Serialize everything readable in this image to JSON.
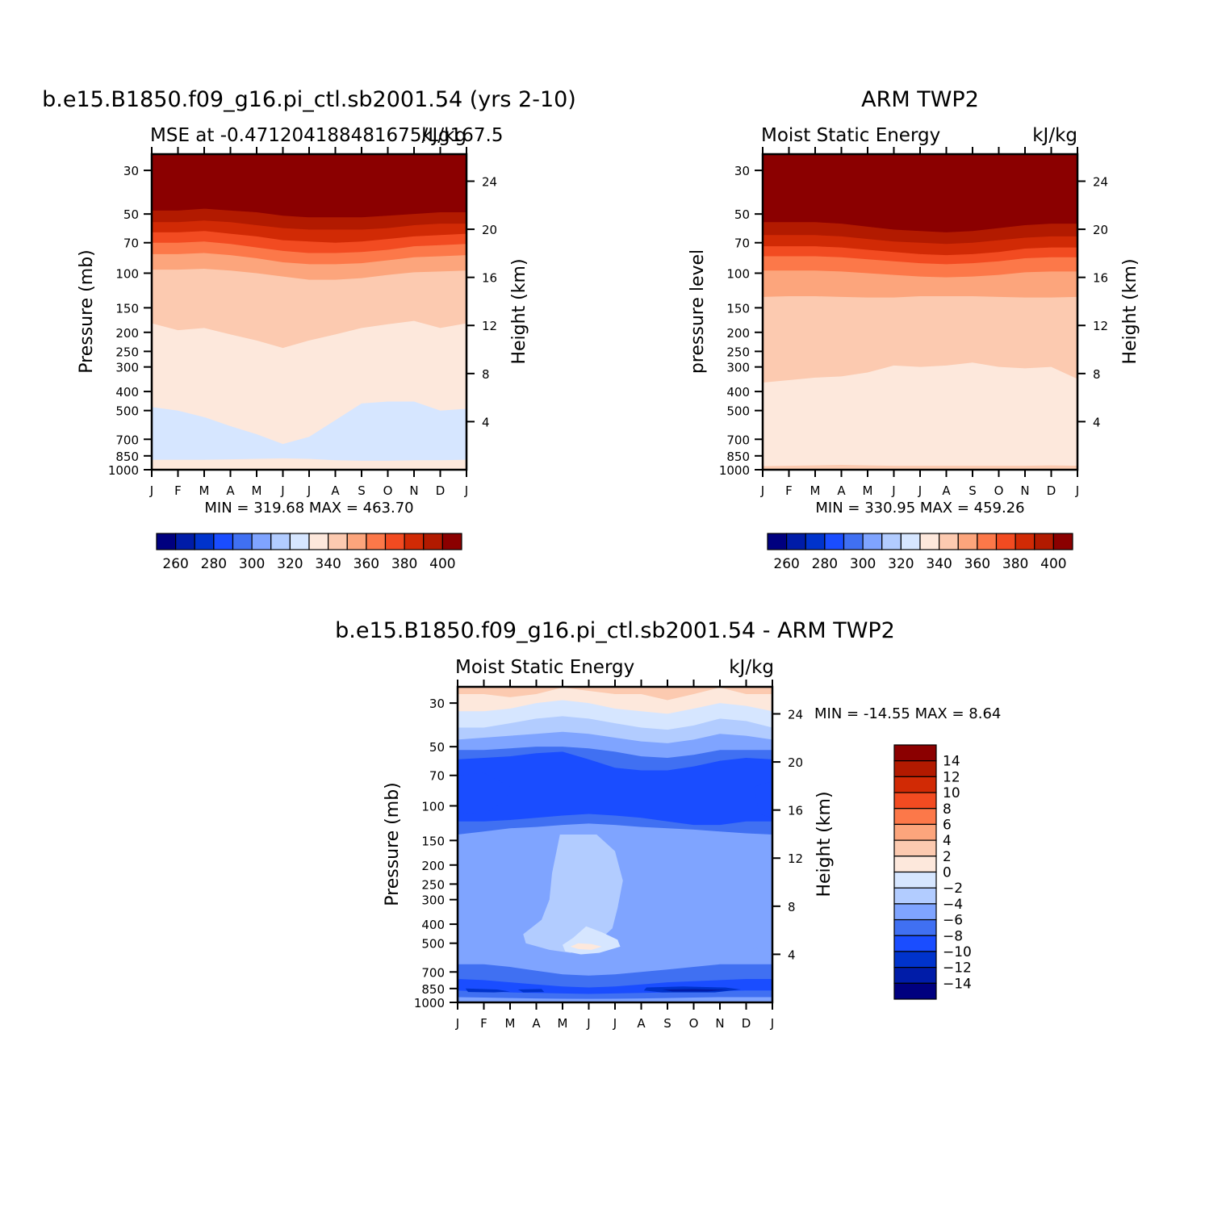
{
  "chart_data": [
    {
      "type": "heatmap",
      "title": "b.e15.B1850.f09_g16.pi_ctl.sb2001.54 (yrs 2-10)",
      "subtitle_left": "MSE at -0.471204188481675/Lg167.5",
      "subtitle_right": "kJ/kg",
      "xlabel": "",
      "ylabel": "Pressure (mb)",
      "ylabel_right": "Height (km)",
      "x_ticks": [
        "J",
        "F",
        "M",
        "A",
        "M",
        "J",
        "J",
        "A",
        "S",
        "O",
        "N",
        "D",
        "J"
      ],
      "y_ticks": [
        "30",
        "50",
        "70",
        "100",
        "150",
        "200",
        "250",
        "300",
        "400",
        "500",
        "700",
        "850",
        "1000"
      ],
      "y_ticks_right": [
        "24",
        "20",
        "16",
        "12",
        "8",
        "4"
      ],
      "y_scale": "log",
      "min_label": "MIN = 319.68 MAX = 463.70",
      "colorbar_labels": [
        "260",
        "280",
        "300",
        "320",
        "340",
        "360",
        "380",
        "400"
      ],
      "levels": [
        260,
        270,
        280,
        290,
        300,
        310,
        320,
        330,
        340,
        350,
        360,
        370,
        380,
        390,
        400
      ],
      "layers": [
        {
          "class": ">400",
          "pressure": [
            48,
            48,
            47,
            48,
            49,
            51,
            52,
            52,
            52,
            51,
            50,
            49,
            49
          ]
        },
        {
          "class": "390-400",
          "pressure": [
            55,
            55,
            54,
            55,
            57,
            59,
            60,
            60,
            60,
            59,
            57,
            56,
            56
          ]
        },
        {
          "class": "380-390",
          "pressure": [
            62,
            62,
            61,
            63,
            65,
            68,
            69,
            70,
            69,
            67,
            65,
            64,
            63
          ]
        },
        {
          "class": "370-380",
          "pressure": [
            70,
            70,
            69,
            71,
            74,
            77,
            79,
            79,
            78,
            76,
            73,
            72,
            71
          ]
        },
        {
          "class": "360-370",
          "pressure": [
            80,
            80,
            79,
            81,
            84,
            88,
            90,
            90,
            89,
            86,
            83,
            82,
            81
          ]
        },
        {
          "class": "350-360",
          "pressure": [
            96,
            96,
            95,
            97,
            100,
            104,
            108,
            108,
            106,
            102,
            99,
            98,
            97
          ]
        },
        {
          "class": "340-350",
          "pressure": [
            180,
            195,
            190,
            205,
            220,
            240,
            220,
            205,
            190,
            182,
            175,
            190,
            180
          ]
        },
        {
          "class": "330-340",
          "pressure": [
            480,
            500,
            540,
            600,
            660,
            740,
            680,
            560,
            460,
            450,
            450,
            500,
            490
          ]
        },
        {
          "class": "320-330",
          "pressure": [
            890,
            890,
            890,
            885,
            880,
            875,
            880,
            895,
            900,
            900,
            895,
            895,
            890
          ]
        },
        {
          "class": "330-340",
          "pressure": [
            1000,
            1000,
            1000,
            1000,
            1000,
            1000,
            1000,
            1000,
            1000,
            1000,
            1000,
            1000,
            1000
          ]
        }
      ]
    },
    {
      "type": "heatmap",
      "title": "ARM TWP2",
      "subtitle_left": "Moist Static Energy",
      "subtitle_right": "kJ/kg",
      "ylabel": "pressure level",
      "ylabel_right": "Height (km)",
      "x_ticks": [
        "J",
        "F",
        "M",
        "A",
        "M",
        "J",
        "J",
        "A",
        "S",
        "O",
        "N",
        "D",
        "J"
      ],
      "y_ticks": [
        "30",
        "50",
        "70",
        "100",
        "150",
        "200",
        "250",
        "300",
        "400",
        "500",
        "700",
        "850",
        "1000"
      ],
      "y_ticks_right": [
        "24",
        "20",
        "16",
        "12",
        "8",
        "4"
      ],
      "y_scale": "log",
      "min_label": "MIN = 330.95 MAX = 459.26",
      "colorbar_labels": [
        "260",
        "280",
        "300",
        "320",
        "340",
        "360",
        "380",
        "400"
      ],
      "levels": [
        260,
        270,
        280,
        290,
        300,
        310,
        320,
        330,
        340,
        350,
        360,
        370,
        380,
        390,
        400
      ],
      "layers": [
        {
          "class": ">400",
          "pressure": [
            55,
            55,
            55,
            56,
            58,
            60,
            61,
            62,
            61,
            59,
            57,
            56,
            56
          ]
        },
        {
          "class": "390-400",
          "pressure": [
            64,
            64,
            64,
            65,
            67,
            69,
            70,
            71,
            70,
            68,
            66,
            65,
            65
          ]
        },
        {
          "class": "380-390",
          "pressure": [
            73,
            73,
            73,
            74,
            76,
            78,
            80,
            81,
            80,
            78,
            75,
            74,
            74
          ]
        },
        {
          "class": "370-380",
          "pressure": [
            82,
            82,
            82,
            83,
            85,
            87,
            89,
            90,
            89,
            87,
            84,
            83,
            83
          ]
        },
        {
          "class": "360-370",
          "pressure": [
            97,
            97,
            97,
            98,
            100,
            102,
            104,
            105,
            104,
            102,
            99,
            98,
            98
          ]
        },
        {
          "class": "350-360",
          "pressure": [
            132,
            131,
            131,
            132,
            133,
            133,
            131,
            131,
            131,
            132,
            133,
            133,
            132
          ]
        },
        {
          "class": "340-350",
          "pressure": [
            360,
            350,
            340,
            335,
            320,
            295,
            300,
            295,
            285,
            300,
            305,
            300,
            345
          ]
        },
        {
          "class": "330-340",
          "pressure": [
            960,
            955,
            950,
            945,
            950,
            955,
            955,
            955,
            955,
            955,
            955,
            950,
            955
          ]
        },
        {
          "class": "340-350",
          "pressure": [
            1000,
            1000,
            1000,
            1000,
            1000,
            1000,
            1000,
            1000,
            1000,
            1000,
            1000,
            1000,
            1000
          ]
        }
      ]
    },
    {
      "type": "heatmap",
      "title": "b.e15.B1850.f09_g16.pi_ctl.sb2001.54 - ARM TWP2",
      "subtitle_left": "Moist Static Energy",
      "subtitle_right": "kJ/kg",
      "ylabel": "Pressure (mb)",
      "ylabel_right": "Height (km)",
      "x_ticks": [
        "J",
        "F",
        "M",
        "A",
        "M",
        "J",
        "J",
        "A",
        "S",
        "O",
        "N",
        "D",
        "J"
      ],
      "y_ticks": [
        "30",
        "50",
        "70",
        "100",
        "150",
        "200",
        "250",
        "300",
        "400",
        "500",
        "700",
        "850",
        "1000"
      ],
      "y_ticks_right": [
        "24",
        "20",
        "16",
        "12",
        "8",
        "4"
      ],
      "y_scale": "log",
      "min_label": "MIN = -14.55 MAX = 8.64",
      "colorbar_labels": [
        "14",
        "12",
        "10",
        "8",
        "6",
        "4",
        "2",
        "0",
        "-2",
        "-4",
        "-6",
        "-8",
        "-10",
        "-12",
        "-14"
      ],
      "levels": [
        -14,
        -12,
        -10,
        -8,
        -6,
        -4,
        -2,
        0,
        2,
        4,
        6,
        8,
        10,
        12,
        14
      ],
      "layers": [
        {
          "class": "4-6",
          "pressure": [
            23,
            23,
            23,
            23,
            23,
            23,
            23,
            23,
            23,
            23,
            23,
            23,
            23
          ]
        },
        {
          "class": "2-4",
          "pressure": [
            27,
            27,
            28,
            27,
            25,
            26,
            27,
            27,
            29,
            27,
            25,
            27,
            27
          ]
        },
        {
          "class": "0-2",
          "pressure": [
            33,
            33,
            32,
            30,
            29,
            30,
            32,
            33,
            34,
            32,
            30,
            31,
            33
          ]
        },
        {
          "class": "-2-0",
          "pressure": [
            40,
            40,
            38,
            36,
            35,
            36,
            38,
            40,
            41,
            39,
            36,
            37,
            40
          ]
        },
        {
          "class": "-4--2",
          "pressure": [
            46,
            45,
            44,
            43,
            42,
            43,
            45,
            47,
            48,
            46,
            43,
            44,
            46
          ]
        },
        {
          "class": "-6--4",
          "pressure": [
            52,
            52,
            51,
            50,
            50,
            51,
            53,
            56,
            57,
            55,
            52,
            52,
            52
          ]
        },
        {
          "class": "-8--6",
          "pressure": [
            58,
            57,
            56,
            54,
            53,
            58,
            64,
            66,
            66,
            63,
            59,
            57,
            58
          ]
        },
        {
          "class": "-10--8",
          "pressure": [
            120,
            120,
            118,
            115,
            112,
            110,
            112,
            115,
            120,
            125,
            125,
            120,
            120
          ]
        },
        {
          "class": "-8--6",
          "pressure": [
            140,
            135,
            130,
            128,
            125,
            123,
            125,
            128,
            130,
            132,
            135,
            138,
            140
          ]
        },
        {
          "class": "-6--4",
          "pressure": [
            640,
            640,
            660,
            690,
            720,
            730,
            720,
            700,
            680,
            660,
            640,
            640,
            640
          ]
        },
        {
          "class": "-8--6",
          "pressure": [
            760,
            770,
            790,
            810,
            830,
            840,
            830,
            810,
            790,
            780,
            770,
            760,
            760
          ]
        },
        {
          "class": "-10--8",
          "pressure": [
            870,
            880,
            890,
            895,
            900,
            905,
            900,
            895,
            890,
            880,
            875,
            870,
            870
          ]
        },
        {
          "class": "-8--6",
          "pressure": [
            940,
            945,
            950,
            955,
            958,
            960,
            958,
            955,
            950,
            945,
            940,
            940,
            940
          ]
        },
        {
          "class": "-6--4",
          "pressure": [
            1000,
            1000,
            1000,
            1000,
            1000,
            1000,
            1000,
            1000,
            1000,
            1000,
            1000,
            1000,
            1000
          ]
        }
      ],
      "features": [
        {
          "class": "-4--2",
          "polygon": [
            [
              3.9,
              140
            ],
            [
              5.3,
              140
            ],
            [
              6.0,
              170
            ],
            [
              6.3,
              240
            ],
            [
              6.1,
              330
            ],
            [
              5.9,
              420
            ],
            [
              5.2,
              510
            ],
            [
              4.3,
              560
            ],
            [
              3.5,
              540
            ],
            [
              2.6,
              500
            ],
            [
              2.5,
              450
            ],
            [
              3.2,
              380
            ],
            [
              3.5,
              300
            ],
            [
              3.6,
              220
            ]
          ]
        },
        {
          "class": "-2-0",
          "polygon": [
            [
              4.9,
              410
            ],
            [
              5.5,
              440
            ],
            [
              6.1,
              480
            ],
            [
              6.2,
              520
            ],
            [
              5.4,
              560
            ],
            [
              4.7,
              570
            ],
            [
              4.1,
              550
            ],
            [
              4.0,
              510
            ],
            [
              4.4,
              470
            ]
          ]
        },
        {
          "class": "0-2",
          "polygon": [
            [
              4.6,
              500
            ],
            [
              5.1,
              505
            ],
            [
              5.5,
              520
            ],
            [
              5.1,
              540
            ],
            [
              4.6,
              535
            ],
            [
              4.3,
              520
            ]
          ]
        },
        {
          "class": "-10--8",
          "polygon": [
            [
              0,
              70
            ],
            [
              1.0,
              68
            ],
            [
              2.0,
              80
            ],
            [
              1.8,
              95
            ],
            [
              1.0,
              110
            ],
            [
              0,
              108
            ]
          ]
        },
        {
          "class": "-10--8",
          "polygon": [
            [
              11.3,
              80
            ],
            [
              12.0,
              75
            ],
            [
              12.0,
              115
            ],
            [
              11.5,
              110
            ]
          ]
        },
        {
          "class": "-12--10",
          "polygon": [
            [
              0.3,
              850
            ],
            [
              1.5,
              860
            ],
            [
              2.0,
              880
            ],
            [
              1.4,
              890
            ],
            [
              0.4,
              885
            ]
          ]
        },
        {
          "class": "-12--10",
          "polygon": [
            [
              2.3,
              860
            ],
            [
              3.2,
              855
            ],
            [
              3.3,
              885
            ],
            [
              2.5,
              890
            ]
          ]
        },
        {
          "class": "-12--10",
          "polygon": [
            [
              7.2,
              840
            ],
            [
              8.6,
              830
            ],
            [
              10.2,
              840
            ],
            [
              10.8,
              860
            ],
            [
              9.8,
              890
            ],
            [
              7.8,
              890
            ],
            [
              7.1,
              870
            ]
          ]
        },
        {
          "class": "-14--12",
          "polygon": [
            [
              7.8,
              860
            ],
            [
              9.0,
              855
            ],
            [
              10.3,
              862
            ],
            [
              9.5,
              880
            ],
            [
              8.2,
              880
            ]
          ]
        },
        {
          "class": "-6--4",
          "polygon": [
            [
              11.2,
              540
            ],
            [
              11.4,
              520
            ],
            [
              11.5,
              570
            ],
            [
              11.3,
              590
            ]
          ]
        }
      ]
    }
  ],
  "colors": {
    "diff_scale": [
      "#00007f",
      "#001ca8",
      "#0033cc",
      "#1a4dff",
      "#4070f2",
      "#7fa4ff",
      "#b2ccff",
      "#d6e6ff",
      "#fde8dc",
      "#fccab0",
      "#fca57c",
      "#fc7849",
      "#f24b21",
      "#d12a05",
      "#b21a00",
      "#8b0000"
    ]
  }
}
